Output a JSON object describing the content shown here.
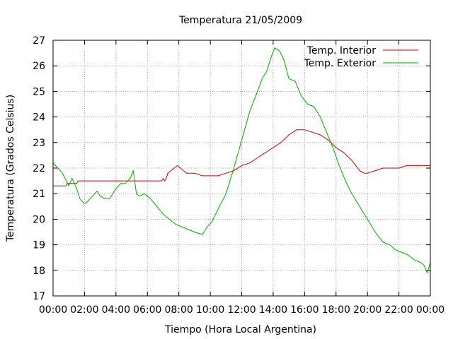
{
  "chart_data": {
    "type": "line",
    "title": "Temperatura 21/05/2009",
    "xlabel": "Tiempo (Hora Local Argentina)",
    "ylabel": "Temperatura (Grados Celsius)",
    "xlim": [
      0,
      24
    ],
    "ylim": [
      17,
      27
    ],
    "x_tick_values": [
      0,
      2,
      4,
      6,
      8,
      10,
      12,
      14,
      16,
      18,
      20,
      22,
      24
    ],
    "x_tick_labels": [
      "00:00",
      "02:00",
      "04:00",
      "06:00",
      "08:00",
      "10:00",
      "12:00",
      "14:00",
      "16:00",
      "18:00",
      "20:00",
      "22:00",
      "00:00"
    ],
    "y_ticks": [
      17,
      18,
      19,
      20,
      21,
      22,
      23,
      24,
      25,
      26,
      27
    ],
    "grid": true,
    "legend_position": "top-right",
    "series": [
      {
        "name": "Temp. Interior",
        "color": "#cc0000",
        "x": [
          0,
          0.8,
          0.9,
          1.5,
          1.6,
          2.5,
          3,
          4,
          5,
          6,
          6.9,
          7.0,
          7.1,
          7.2,
          7.3,
          7.5,
          7.7,
          7.9,
          8.1,
          8.3,
          8.5,
          9,
          9.5,
          10,
          10.5,
          11,
          11.5,
          12,
          12.5,
          13,
          13.5,
          14,
          14.5,
          15,
          15.5,
          16,
          16.5,
          17,
          17.5,
          18,
          18.5,
          19,
          19.5,
          19.8,
          20,
          20.5,
          21,
          21.5,
          22,
          22.5,
          23,
          24
        ],
        "values": [
          21.3,
          21.3,
          21.4,
          21.4,
          21.5,
          21.5,
          21.5,
          21.5,
          21.5,
          21.5,
          21.5,
          21.6,
          21.5,
          21.6,
          21.8,
          21.9,
          22.0,
          22.1,
          22.0,
          21.9,
          21.8,
          21.8,
          21.7,
          21.7,
          21.7,
          21.8,
          21.9,
          22.1,
          22.2,
          22.4,
          22.6,
          22.8,
          23.0,
          23.3,
          23.5,
          23.5,
          23.4,
          23.3,
          23.1,
          22.8,
          22.6,
          22.3,
          21.9,
          21.8,
          21.8,
          21.9,
          22.0,
          22.0,
          22.0,
          22.1,
          22.1,
          22.1
        ]
      },
      {
        "name": "Temp. Exterior",
        "color": "#00aa00",
        "x": [
          0,
          0.3,
          0.6,
          1.0,
          1.2,
          1.5,
          1.7,
          2.0,
          2.2,
          2.5,
          2.8,
          3.0,
          3.3,
          3.6,
          4.0,
          4.3,
          4.6,
          4.9,
          5.1,
          5.3,
          5.5,
          5.8,
          6.2,
          6.6,
          7.0,
          7.4,
          7.8,
          8.2,
          8.6,
          9.0,
          9.5,
          9.8,
          10.1,
          10.5,
          11.0,
          11.5,
          12.0,
          12.5,
          13.0,
          13.3,
          13.6,
          13.9,
          14.1,
          14.4,
          14.7,
          15.0,
          15.4,
          15.8,
          16.2,
          16.6,
          17.0,
          17.4,
          17.8,
          18.2,
          18.6,
          19.0,
          19.4,
          19.8,
          20.2,
          20.6,
          21.0,
          21.4,
          21.8,
          22.2,
          22.6,
          23.0,
          23.4,
          23.6,
          23.8,
          24.0
        ],
        "values": [
          22.2,
          22.0,
          21.8,
          21.3,
          21.6,
          21.2,
          20.8,
          20.6,
          20.7,
          20.9,
          21.1,
          20.9,
          20.8,
          20.8,
          21.2,
          21.4,
          21.4,
          21.6,
          21.9,
          21.0,
          20.9,
          21.0,
          20.8,
          20.5,
          20.2,
          20.0,
          19.8,
          19.7,
          19.6,
          19.5,
          19.4,
          19.7,
          19.9,
          20.4,
          21.0,
          22.0,
          23.1,
          24.2,
          25.0,
          25.5,
          25.8,
          26.4,
          26.7,
          26.6,
          26.2,
          25.5,
          25.4,
          24.8,
          24.5,
          24.4,
          24.0,
          23.4,
          22.8,
          22.1,
          21.5,
          21.0,
          20.6,
          20.2,
          19.8,
          19.4,
          19.1,
          19.0,
          18.8,
          18.7,
          18.6,
          18.4,
          18.3,
          18.2,
          17.9,
          18.3
        ]
      }
    ]
  }
}
